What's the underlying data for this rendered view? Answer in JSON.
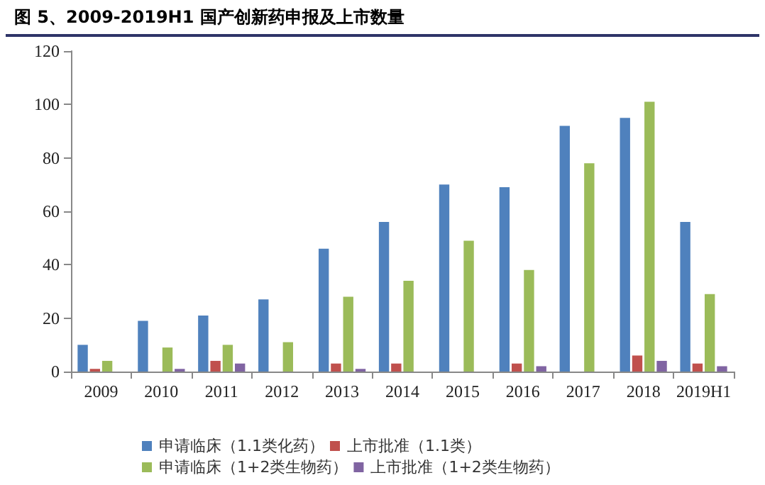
{
  "chart_data": {
    "type": "bar",
    "title": "图 5、2009-2019H1 国产创新药申报及上市数量",
    "categories": [
      "2009",
      "2010",
      "2011",
      "2012",
      "2013",
      "2014",
      "2015",
      "2016",
      "2017",
      "2018",
      "2019H1"
    ],
    "series": [
      {
        "name": "申请临床（1.1类化药）",
        "color": "#4f81bd",
        "values": [
          10,
          19,
          21,
          27,
          46,
          56,
          70,
          69,
          92,
          95,
          56
        ]
      },
      {
        "name": "上市批准（1.1类）",
        "color": "#c0504d",
        "values": [
          1,
          0,
          4,
          0,
          3,
          3,
          0,
          3,
          0,
          6,
          3
        ]
      },
      {
        "name": "申请临床（1+2类生物药）",
        "color": "#9bbb59",
        "values": [
          4,
          9,
          10,
          11,
          28,
          34,
          49,
          38,
          78,
          101,
          29
        ]
      },
      {
        "name": "上市批准（1+2类生物药）",
        "color": "#8064a2",
        "values": [
          0,
          1,
          3,
          0,
          1,
          0,
          0,
          2,
          0,
          4,
          2
        ]
      }
    ],
    "ylim": [
      0,
      120
    ],
    "yticks": [
      0,
      20,
      40,
      60,
      80,
      100,
      120
    ],
    "grid": false,
    "legend": "bottom"
  }
}
